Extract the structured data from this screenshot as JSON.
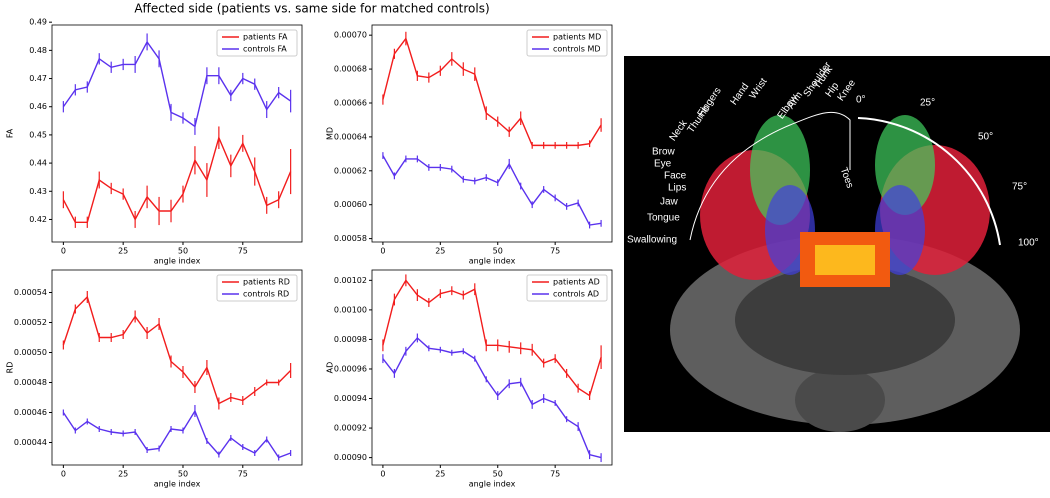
{
  "title": "Affected side (patients vs. same side for matched controls)",
  "chart_data": [
    {
      "type": "line",
      "xlabel": "angle index",
      "ylabel": "FA",
      "legend": "upper right",
      "x": [
        0,
        5,
        10,
        15,
        20,
        25,
        30,
        35,
        40,
        45,
        50,
        55,
        60,
        65,
        70,
        75,
        80,
        85,
        90,
        95
      ],
      "xlim": [
        -4.75,
        99.75
      ],
      "xticks": [
        0,
        25,
        50,
        75
      ],
      "ylim": [
        0.412,
        0.489
      ],
      "yticks": [
        0.42,
        0.43,
        0.44,
        0.45,
        0.46,
        0.47,
        0.48,
        0.49
      ],
      "series": [
        {
          "name": "patients FA",
          "color": "#f21d1d",
          "values": [
            0.427,
            0.419,
            0.419,
            0.434,
            0.431,
            0.429,
            0.42,
            0.428,
            0.423,
            0.423,
            0.429,
            0.441,
            0.434,
            0.449,
            0.439,
            0.447,
            0.437,
            0.425,
            0.427,
            0.437
          ],
          "errors": [
            0.003,
            0.002,
            0.002,
            0.003,
            0.002,
            0.002,
            0.003,
            0.004,
            0.005,
            0.004,
            0.003,
            0.005,
            0.006,
            0.004,
            0.004,
            0.003,
            0.005,
            0.003,
            0.003,
            0.008
          ]
        },
        {
          "name": "controls FA",
          "color": "#5a32ee",
          "values": [
            0.46,
            0.466,
            0.467,
            0.477,
            0.474,
            0.475,
            0.475,
            0.483,
            0.477,
            0.458,
            0.456,
            0.453,
            0.471,
            0.471,
            0.464,
            0.47,
            0.468,
            0.459,
            0.465,
            0.462
          ],
          "errors": [
            0.002,
            0.002,
            0.002,
            0.002,
            0.002,
            0.002,
            0.003,
            0.003,
            0.003,
            0.003,
            0.002,
            0.003,
            0.003,
            0.003,
            0.002,
            0.002,
            0.002,
            0.003,
            0.002,
            0.004
          ]
        }
      ]
    },
    {
      "type": "line",
      "xlabel": "angle index",
      "ylabel": "MD",
      "legend": "upper right",
      "x": [
        0,
        5,
        10,
        15,
        20,
        25,
        30,
        35,
        40,
        45,
        50,
        55,
        60,
        65,
        70,
        75,
        80,
        85,
        90,
        95
      ],
      "xlim": [
        -4.75,
        99.75
      ],
      "xticks": [
        0,
        25,
        50,
        75
      ],
      "ylim": [
        0.000578,
        0.000706
      ],
      "yticks": [
        {
          "value": 0.00058,
          "label": "0.00058"
        },
        {
          "value": 0.0006,
          "label": "0.00060"
        },
        {
          "value": 0.00062,
          "label": "0.00062"
        },
        {
          "value": 0.00064,
          "label": "0.00064"
        },
        {
          "value": 0.00066,
          "label": "0.00066"
        },
        {
          "value": 0.00068,
          "label": "0.00068"
        },
        {
          "value": 0.0007,
          "label": "0.00070"
        }
      ],
      "series": [
        {
          "name": "patients MD",
          "color": "#f21d1d",
          "values": [
            0.000662,
            0.000689,
            0.000698,
            0.000676,
            0.000675,
            0.000679,
            0.000686,
            0.00068,
            0.000677,
            0.000654,
            0.000649,
            0.000643,
            0.000651,
            0.000635,
            0.000635,
            0.000635,
            0.000635,
            0.000635,
            0.000636,
            0.000647
          ],
          "errors": [
            3e-06,
            3e-06,
            4e-06,
            3e-06,
            3e-06,
            3e-06,
            4e-06,
            4e-06,
            4e-06,
            4e-06,
            3e-06,
            3e-06,
            4e-06,
            2e-06,
            2e-06,
            2e-06,
            2e-06,
            2e-06,
            2e-06,
            4e-06
          ]
        },
        {
          "name": "controls MD",
          "color": "#5a32ee",
          "values": [
            0.000629,
            0.000617,
            0.000627,
            0.000627,
            0.000622,
            0.000622,
            0.000621,
            0.000615,
            0.000614,
            0.000616,
            0.000613,
            0.000624,
            0.000611,
            0.0006,
            0.000609,
            0.000604,
            0.000599,
            0.000601,
            0.000588,
            0.000589
          ],
          "errors": [
            2e-06,
            2e-06,
            2e-06,
            2e-06,
            2e-06,
            2e-06,
            2e-06,
            2e-06,
            2e-06,
            2e-06,
            2e-06,
            3e-06,
            2e-06,
            2e-06,
            2e-06,
            2e-06,
            2e-06,
            2e-06,
            2e-06,
            2e-06
          ]
        }
      ]
    },
    {
      "type": "line",
      "xlabel": "angle index",
      "ylabel": "RD",
      "legend": "upper right",
      "x": [
        0,
        5,
        10,
        15,
        20,
        25,
        30,
        35,
        40,
        45,
        50,
        55,
        60,
        65,
        70,
        75,
        80,
        85,
        90,
        95
      ],
      "xlim": [
        -4.75,
        99.75
      ],
      "xticks": [
        0,
        25,
        50,
        75
      ],
      "ylim": [
        0.000425,
        0.000555
      ],
      "yticks": [
        {
          "value": 0.00044,
          "label": "0.00044"
        },
        {
          "value": 0.00046,
          "label": "0.00046"
        },
        {
          "value": 0.00048,
          "label": "0.00048"
        },
        {
          "value": 0.0005,
          "label": "0.00050"
        },
        {
          "value": 0.00052,
          "label": "0.00052"
        },
        {
          "value": 0.00054,
          "label": "0.00054"
        }
      ],
      "series": [
        {
          "name": "patients RD",
          "color": "#f21d1d",
          "values": [
            0.000505,
            0.000529,
            0.000537,
            0.00051,
            0.00051,
            0.000512,
            0.000524,
            0.000513,
            0.000519,
            0.000494,
            0.000487,
            0.000477,
            0.00049,
            0.000466,
            0.00047,
            0.000468,
            0.000474,
            0.00048,
            0.00048,
            0.000488
          ],
          "errors": [
            3e-06,
            3e-06,
            4e-06,
            3e-06,
            3e-06,
            3e-06,
            4e-06,
            4e-06,
            4e-06,
            4e-06,
            4e-06,
            4e-06,
            5e-06,
            4e-06,
            3e-06,
            3e-06,
            3e-06,
            2e-06,
            2e-06,
            5e-06
          ]
        },
        {
          "name": "controls RD",
          "color": "#5a32ee",
          "values": [
            0.00046,
            0.000448,
            0.000454,
            0.000449,
            0.000447,
            0.000446,
            0.000447,
            0.000435,
            0.000436,
            0.000449,
            0.000448,
            0.000461,
            0.000441,
            0.000432,
            0.000443,
            0.000437,
            0.000433,
            0.000442,
            0.00043,
            0.000433
          ],
          "errors": [
            2e-06,
            2e-06,
            2e-06,
            2e-06,
            2e-06,
            2e-06,
            2e-06,
            2e-06,
            2e-06,
            2e-06,
            2e-06,
            4e-06,
            2e-06,
            2e-06,
            2e-06,
            2e-06,
            2e-06,
            2e-06,
            2e-06,
            2e-06
          ]
        }
      ]
    },
    {
      "type": "line",
      "xlabel": "angle index",
      "ylabel": "AD",
      "legend": "upper right",
      "x": [
        0,
        5,
        10,
        15,
        20,
        25,
        30,
        35,
        40,
        45,
        50,
        55,
        60,
        65,
        70,
        75,
        80,
        85,
        90,
        95
      ],
      "xlim": [
        -4.75,
        99.75
      ],
      "xticks": [
        0,
        25,
        50,
        75
      ],
      "ylim": [
        0.000895,
        0.001027
      ],
      "yticks": [
        {
          "value": 0.0009,
          "label": "0.00090"
        },
        {
          "value": 0.00092,
          "label": "0.00092"
        },
        {
          "value": 0.00094,
          "label": "0.00094"
        },
        {
          "value": 0.00096,
          "label": "0.00096"
        },
        {
          "value": 0.00098,
          "label": "0.00098"
        },
        {
          "value": 0.001,
          "label": "0.00100"
        },
        {
          "value": 0.00102,
          "label": "0.00102"
        }
      ],
      "series": [
        {
          "name": "patients AD",
          "color": "#f21d1d",
          "values": [
            0.000976,
            0.001007,
            0.00102,
            0.00101,
            0.001005,
            0.001011,
            0.001013,
            0.00101,
            0.001014,
            0.000976,
            0.000976,
            0.000975,
            0.000974,
            0.000973,
            0.000964,
            0.000967,
            0.000957,
            0.000947,
            0.000942,
            0.000968
          ],
          "errors": [
            4e-06,
            4e-06,
            4e-06,
            4e-06,
            3e-06,
            3e-06,
            3e-06,
            3e-06,
            4e-06,
            4e-06,
            4e-06,
            4e-06,
            4e-06,
            4e-06,
            3e-06,
            3e-06,
            3e-06,
            3e-06,
            3e-06,
            8e-06
          ]
        },
        {
          "name": "controls AD",
          "color": "#5a32ee",
          "values": [
            0.000967,
            0.000957,
            0.000972,
            0.000981,
            0.000974,
            0.000973,
            0.000971,
            0.000972,
            0.000967,
            0.000953,
            0.000942,
            0.00095,
            0.000951,
            0.000936,
            0.00094,
            0.000937,
            0.000926,
            0.000921,
            0.000902,
            0.0009
          ],
          "errors": [
            3e-06,
            3e-06,
            3e-06,
            3e-06,
            2e-06,
            2e-06,
            2e-06,
            2e-06,
            2e-06,
            2e-06,
            3e-06,
            3e-06,
            3e-06,
            3e-06,
            3e-06,
            2e-06,
            2e-06,
            3e-06,
            3e-06,
            3e-06
          ]
        }
      ]
    }
  ],
  "brain_figure": {
    "labels": [
      "Swallowing",
      "Tongue",
      "Jaw",
      "Lips",
      "Face",
      "Eye",
      "Brow",
      "Neck",
      "Thumb",
      "Fingers",
      "Hand",
      "Wrist",
      "Elbow",
      "Arm",
      "Shoulder",
      "Trunk",
      "Hip",
      "Knee",
      "Toes",
      "0°",
      "25°",
      "50°",
      "75°",
      "100°"
    ]
  }
}
